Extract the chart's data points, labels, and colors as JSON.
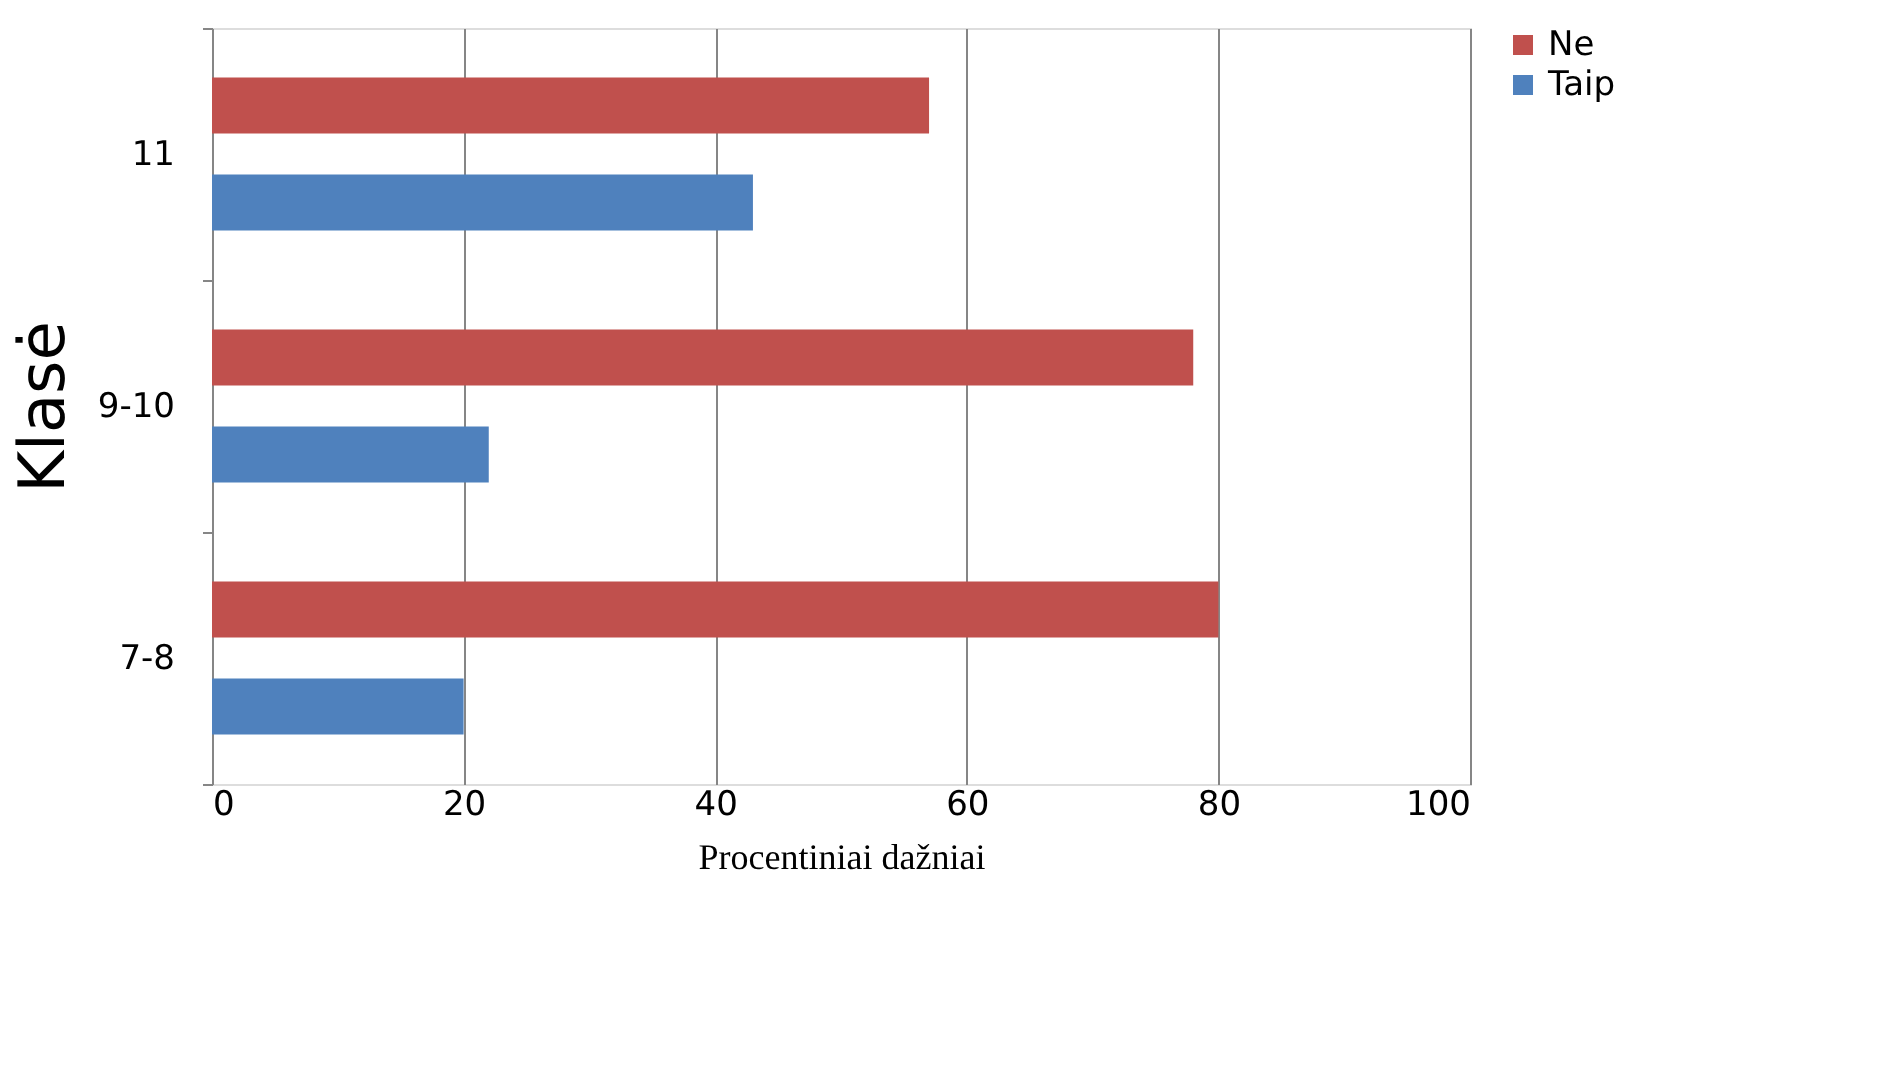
{
  "chart_data": {
    "type": "bar",
    "orientation": "horizontal",
    "xlabel": "Procentiniai dažniai",
    "ylabel": "Klasė",
    "categories": [
      "11",
      "9-10",
      "7-8"
    ],
    "series": [
      {
        "name": "Ne",
        "color": "#c0504d",
        "values": [
          57,
          78,
          80
        ]
      },
      {
        "name": "Taip",
        "color": "#4f81bd",
        "values": [
          43,
          22,
          20
        ]
      }
    ],
    "xlim": [
      0,
      100
    ],
    "xticks": [
      0,
      20,
      40,
      60,
      80,
      100
    ],
    "grid": "x",
    "legend": "right"
  }
}
